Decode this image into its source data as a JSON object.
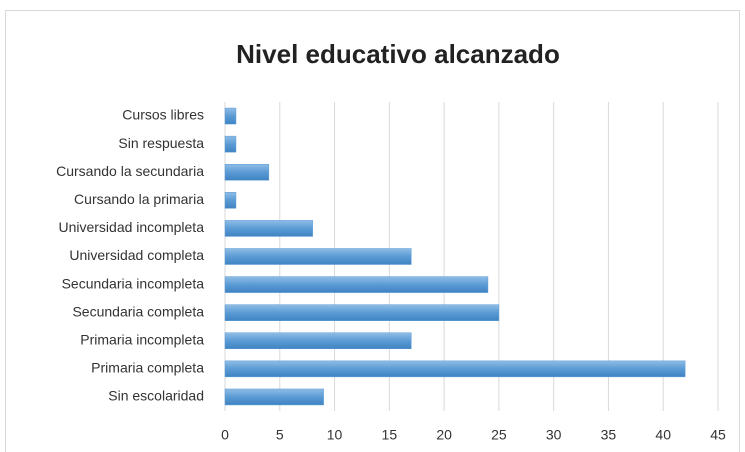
{
  "chart_data": {
    "type": "barh",
    "title": "Nivel educativo alcanzado",
    "categories": [
      "Sin escolaridad",
      "Primaria completa",
      "Primaria incompleta",
      "Secundaria completa",
      "Secundaria incompleta",
      "Universidad completa",
      "Universidad incompleta",
      "Cursando la primaria",
      "Cursando la secundaria",
      "Sin respuesta",
      "Cursos libres"
    ],
    "values": [
      9,
      42,
      17,
      25,
      24,
      17,
      8,
      1,
      4,
      1,
      1
    ],
    "color": "#5b9bd5",
    "xlim": [
      0,
      45
    ],
    "xticks": [
      0,
      5,
      10,
      15,
      20,
      25,
      30,
      35,
      40,
      45
    ],
    "grid": true
  }
}
